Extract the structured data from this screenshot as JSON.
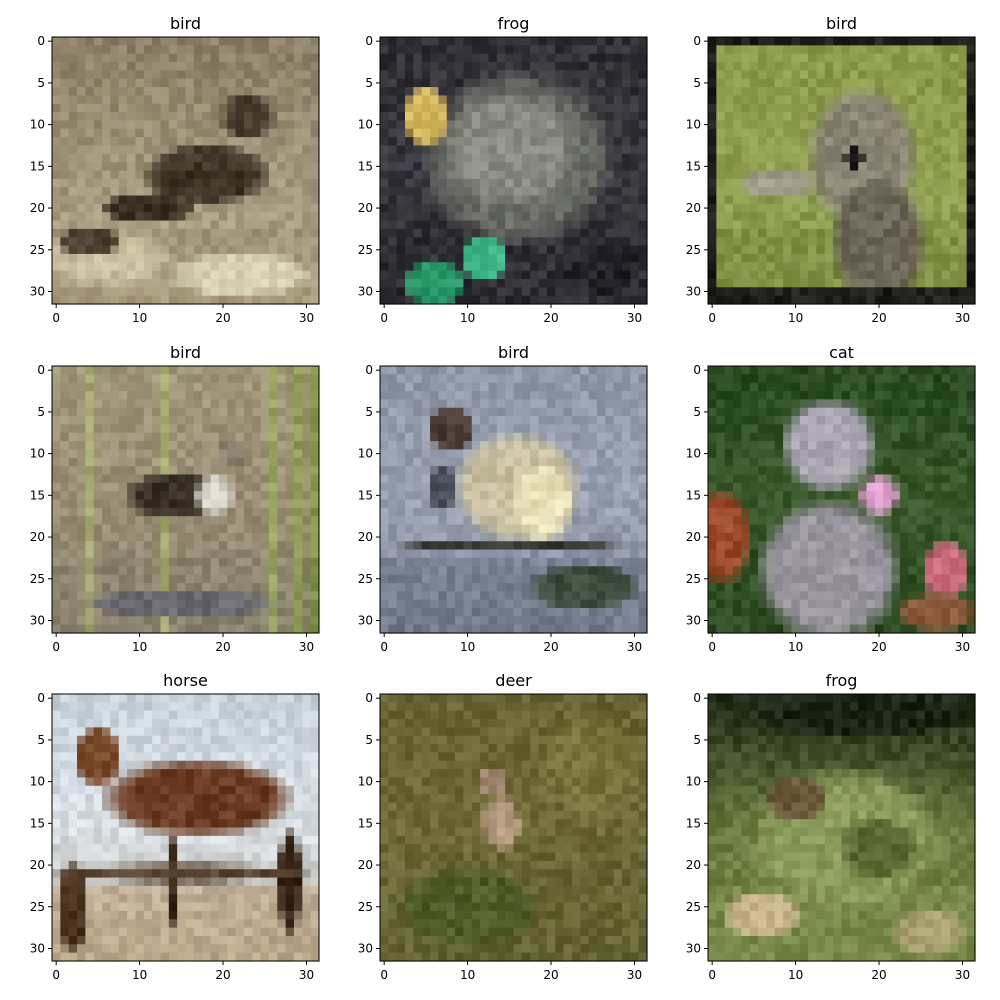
{
  "chart_data": [
    {
      "type": "image",
      "title": "bird",
      "x_ticks": [
        0,
        10,
        20,
        30
      ],
      "y_ticks": [
        0,
        5,
        10,
        15,
        20,
        25,
        30
      ],
      "extent": [
        -0.5,
        31.5
      ],
      "scene": {
        "sky": [
          "#8c8068",
          "#a0957a",
          "#b4a88a"
        ],
        "ground": "#9a8c70",
        "ellipses": [
          {
            "cx": 18,
            "cy": 16,
            "rx": 8,
            "ry": 4,
            "color": "#3e3426"
          },
          {
            "cx": 23,
            "cy": 9,
            "rx": 3.5,
            "ry": 3,
            "color": "#4a3e30"
          },
          {
            "cx": 11,
            "cy": 20,
            "rx": 6,
            "ry": 2,
            "color": "#3a3024"
          },
          {
            "cx": 6,
            "cy": 26,
            "rx": 8,
            "ry": 3.5,
            "color": "#c8bea0"
          },
          {
            "cx": 22,
            "cy": 28,
            "rx": 9,
            "ry": 3,
            "color": "#d8d0b4"
          },
          {
            "cx": 4,
            "cy": 24,
            "rx": 4,
            "ry": 2,
            "color": "#4a3e2e"
          }
        ]
      }
    },
    {
      "type": "image",
      "title": "frog",
      "x_ticks": [
        0,
        10,
        20,
        30
      ],
      "y_ticks": [
        0,
        5,
        10,
        15,
        20,
        25,
        30
      ],
      "extent": [
        -0.5,
        31.5
      ],
      "scene": {
        "sky": [
          "#2e2e34",
          "#38383e",
          "#2a2a30"
        ],
        "ground": "#2e2e34",
        "ellipses": [
          {
            "cx": 16,
            "cy": 14,
            "rx": 12,
            "ry": 11,
            "color": "#6a6c66"
          },
          {
            "cx": 15,
            "cy": 13,
            "rx": 8,
            "ry": 7,
            "color": "#8a8c84"
          },
          {
            "cx": 5,
            "cy": 9,
            "rx": 3,
            "ry": 4,
            "color": "#d6b860"
          },
          {
            "cx": 6,
            "cy": 29,
            "rx": 4,
            "ry": 3,
            "color": "#2a9a6a"
          },
          {
            "cx": 12,
            "cy": 26,
            "rx": 3,
            "ry": 3,
            "color": "#40b88a"
          },
          {
            "cx": 26,
            "cy": 27,
            "rx": 5,
            "ry": 4,
            "color": "#222228"
          }
        ]
      }
    },
    {
      "type": "image",
      "title": "bird",
      "x_ticks": [
        0,
        10,
        20,
        30
      ],
      "y_ticks": [
        0,
        5,
        10,
        15,
        20,
        25,
        30
      ],
      "extent": [
        -0.5,
        31.5
      ],
      "scene": {
        "sky": [
          "#8a9a4a",
          "#90a050",
          "#86964a"
        ],
        "ground": "#7a8a40",
        "frame": "#1e1e1a",
        "ellipses": [
          {
            "cx": 18,
            "cy": 14,
            "rx": 7,
            "ry": 9,
            "color": "#8a8474"
          },
          {
            "cx": 20,
            "cy": 24,
            "rx": 6,
            "ry": 8,
            "color": "#6a6456"
          },
          {
            "cx": 8,
            "cy": 17,
            "rx": 5,
            "ry": 2,
            "color": "#a09a88"
          },
          {
            "cx": 17,
            "cy": 14,
            "rx": 1.2,
            "ry": 1.4,
            "color": "#141414"
          }
        ]
      }
    },
    {
      "type": "image",
      "title": "bird",
      "x_ticks": [
        0,
        10,
        20,
        30
      ],
      "y_ticks": [
        0,
        5,
        10,
        15,
        20,
        25,
        30
      ],
      "extent": [
        -0.5,
        31.5
      ],
      "scene": {
        "sky": [
          "#a0967a",
          "#9a8e76",
          "#8a806c"
        ],
        "ground": "#8a8270",
        "stripes": [
          {
            "x": 4,
            "color": "#a8b070"
          },
          {
            "x": 13,
            "color": "#a6b46c"
          },
          {
            "x": 26,
            "color": "#98ac5c"
          },
          {
            "x": 29,
            "color": "#88a04a"
          },
          {
            "x": 31,
            "color": "#7a9a3c"
          }
        ],
        "ellipses": [
          {
            "cx": 14,
            "cy": 15,
            "rx": 6,
            "ry": 3,
            "color": "#3a3228"
          },
          {
            "cx": 19,
            "cy": 15,
            "rx": 2.5,
            "ry": 2.5,
            "color": "#d8d4cc"
          },
          {
            "cx": 21,
            "cy": 10,
            "rx": 2,
            "ry": 2,
            "color": "#8a8070"
          },
          {
            "cx": 15,
            "cy": 28,
            "rx": 12,
            "ry": 2,
            "color": "#6a6a70"
          }
        ]
      }
    },
    {
      "type": "image",
      "title": "bird",
      "x_ticks": [
        0,
        10,
        20,
        30
      ],
      "y_ticks": [
        0,
        5,
        10,
        15,
        20,
        25,
        30
      ],
      "extent": [
        -0.5,
        31.5
      ],
      "scene": {
        "sky": [
          "#8e96a8",
          "#9aa2b4",
          "#7a8294"
        ],
        "ground": "#6a7282",
        "ellipses": [
          {
            "cx": 16,
            "cy": 14,
            "rx": 8,
            "ry": 7,
            "color": "#c8c0a0"
          },
          {
            "cx": 19,
            "cy": 16,
            "rx": 4,
            "ry": 5,
            "color": "#e8e0b8"
          },
          {
            "cx": 8,
            "cy": 7,
            "rx": 3,
            "ry": 3,
            "color": "#4a3c34"
          },
          {
            "cx": 7,
            "cy": 14,
            "rx": 2,
            "ry": 3,
            "color": "#4a4e5a"
          },
          {
            "cx": 15,
            "cy": 21,
            "rx": 14,
            "ry": 1,
            "color": "#3a3a34"
          },
          {
            "cx": 24,
            "cy": 26,
            "rx": 7,
            "ry": 3,
            "color": "#3e4a3c"
          }
        ]
      }
    },
    {
      "type": "image",
      "title": "cat",
      "x_ticks": [
        0,
        10,
        20,
        30
      ],
      "y_ticks": [
        0,
        5,
        10,
        15,
        20,
        25,
        30
      ],
      "extent": [
        -0.5,
        31.5
      ],
      "scene": {
        "sky": [
          "#2a4a22",
          "#3a5a2c",
          "#264220"
        ],
        "ground": "#345424",
        "ellipses": [
          {
            "cx": 1,
            "cy": 20,
            "rx": 4,
            "ry": 6,
            "color": "#9a4a2a"
          },
          {
            "cx": 14,
            "cy": 24,
            "rx": 9,
            "ry": 9,
            "color": "#9a96a0"
          },
          {
            "cx": 14,
            "cy": 9,
            "rx": 6,
            "ry": 6,
            "color": "#a8a4b0"
          },
          {
            "cx": 20,
            "cy": 15,
            "rx": 2.5,
            "ry": 2.5,
            "color": "#e0a0d0"
          },
          {
            "cx": 28,
            "cy": 24,
            "rx": 3,
            "ry": 4,
            "color": "#c86a7a"
          },
          {
            "cx": 27,
            "cy": 29,
            "rx": 5,
            "ry": 2.5,
            "color": "#8a5a3a"
          }
        ]
      }
    },
    {
      "type": "image",
      "title": "horse",
      "x_ticks": [
        0,
        10,
        20,
        30
      ],
      "y_ticks": [
        0,
        5,
        10,
        15,
        20,
        25,
        30
      ],
      "extent": [
        -0.5,
        31.5
      ],
      "scene": {
        "sky": [
          "#c8d2dc",
          "#d8dee4",
          "#c0b8a8"
        ],
        "ground": "#b4946a",
        "ellipses": [
          {
            "cx": 17,
            "cy": 12,
            "rx": 12,
            "ry": 5,
            "color": "#6a3a22"
          },
          {
            "cx": 5,
            "cy": 7,
            "rx": 3,
            "ry": 4,
            "color": "#7a4a2c"
          },
          {
            "cx": 14,
            "cy": 22,
            "rx": 1,
            "ry": 6,
            "color": "#3a2618"
          },
          {
            "cx": 28,
            "cy": 22,
            "rx": 1.5,
            "ry": 7,
            "color": "#3a2618"
          },
          {
            "cx": 15,
            "cy": 21,
            "rx": 16,
            "ry": 1.2,
            "color": "#5a4632"
          },
          {
            "cx": 2,
            "cy": 25,
            "rx": 2,
            "ry": 6,
            "color": "#4a3220"
          }
        ]
      }
    },
    {
      "type": "image",
      "title": "deer",
      "x_ticks": [
        0,
        10,
        20,
        30
      ],
      "y_ticks": [
        0,
        5,
        10,
        15,
        20,
        25,
        30
      ],
      "extent": [
        -0.5,
        31.5
      ],
      "scene": {
        "sky": [
          "#6a6432",
          "#706a38",
          "#5e5a2e"
        ],
        "ground": "#6a6a36",
        "ellipses": [
          {
            "cx": 14,
            "cy": 15,
            "rx": 2.5,
            "ry": 3.5,
            "color": "#b49c80"
          },
          {
            "cx": 13,
            "cy": 10,
            "rx": 2,
            "ry": 2,
            "color": "#a08870"
          },
          {
            "cx": 10,
            "cy": 25,
            "rx": 9,
            "ry": 5,
            "color": "#4e5a28"
          },
          {
            "cx": 25,
            "cy": 8,
            "rx": 6,
            "ry": 6,
            "color": "#7a743c"
          }
        ]
      }
    },
    {
      "type": "image",
      "title": "frog",
      "x_ticks": [
        0,
        10,
        20,
        30
      ],
      "y_ticks": [
        0,
        5,
        10,
        15,
        20,
        25,
        30
      ],
      "extent": [
        -0.5,
        31.5
      ],
      "scene": {
        "sky": [
          "#1e2a16",
          "#6a7a40",
          "#7a8a4a"
        ],
        "ground": "#7a8a4a",
        "ellipses": [
          {
            "cx": 18,
            "cy": 2,
            "rx": 14,
            "ry": 3,
            "color": "#1a2414"
          },
          {
            "cx": 16,
            "cy": 17,
            "rx": 12,
            "ry": 9,
            "color": "#8a9a5a"
          },
          {
            "cx": 10,
            "cy": 12,
            "rx": 4,
            "ry": 3,
            "color": "#6a5a3a"
          },
          {
            "cx": 20,
            "cy": 18,
            "rx": 5,
            "ry": 4,
            "color": "#5a6a34"
          },
          {
            "cx": 6,
            "cy": 26,
            "rx": 5,
            "ry": 3,
            "color": "#c8b48a"
          },
          {
            "cx": 26,
            "cy": 28,
            "rx": 5,
            "ry": 3,
            "color": "#a8a070"
          }
        ]
      }
    }
  ]
}
